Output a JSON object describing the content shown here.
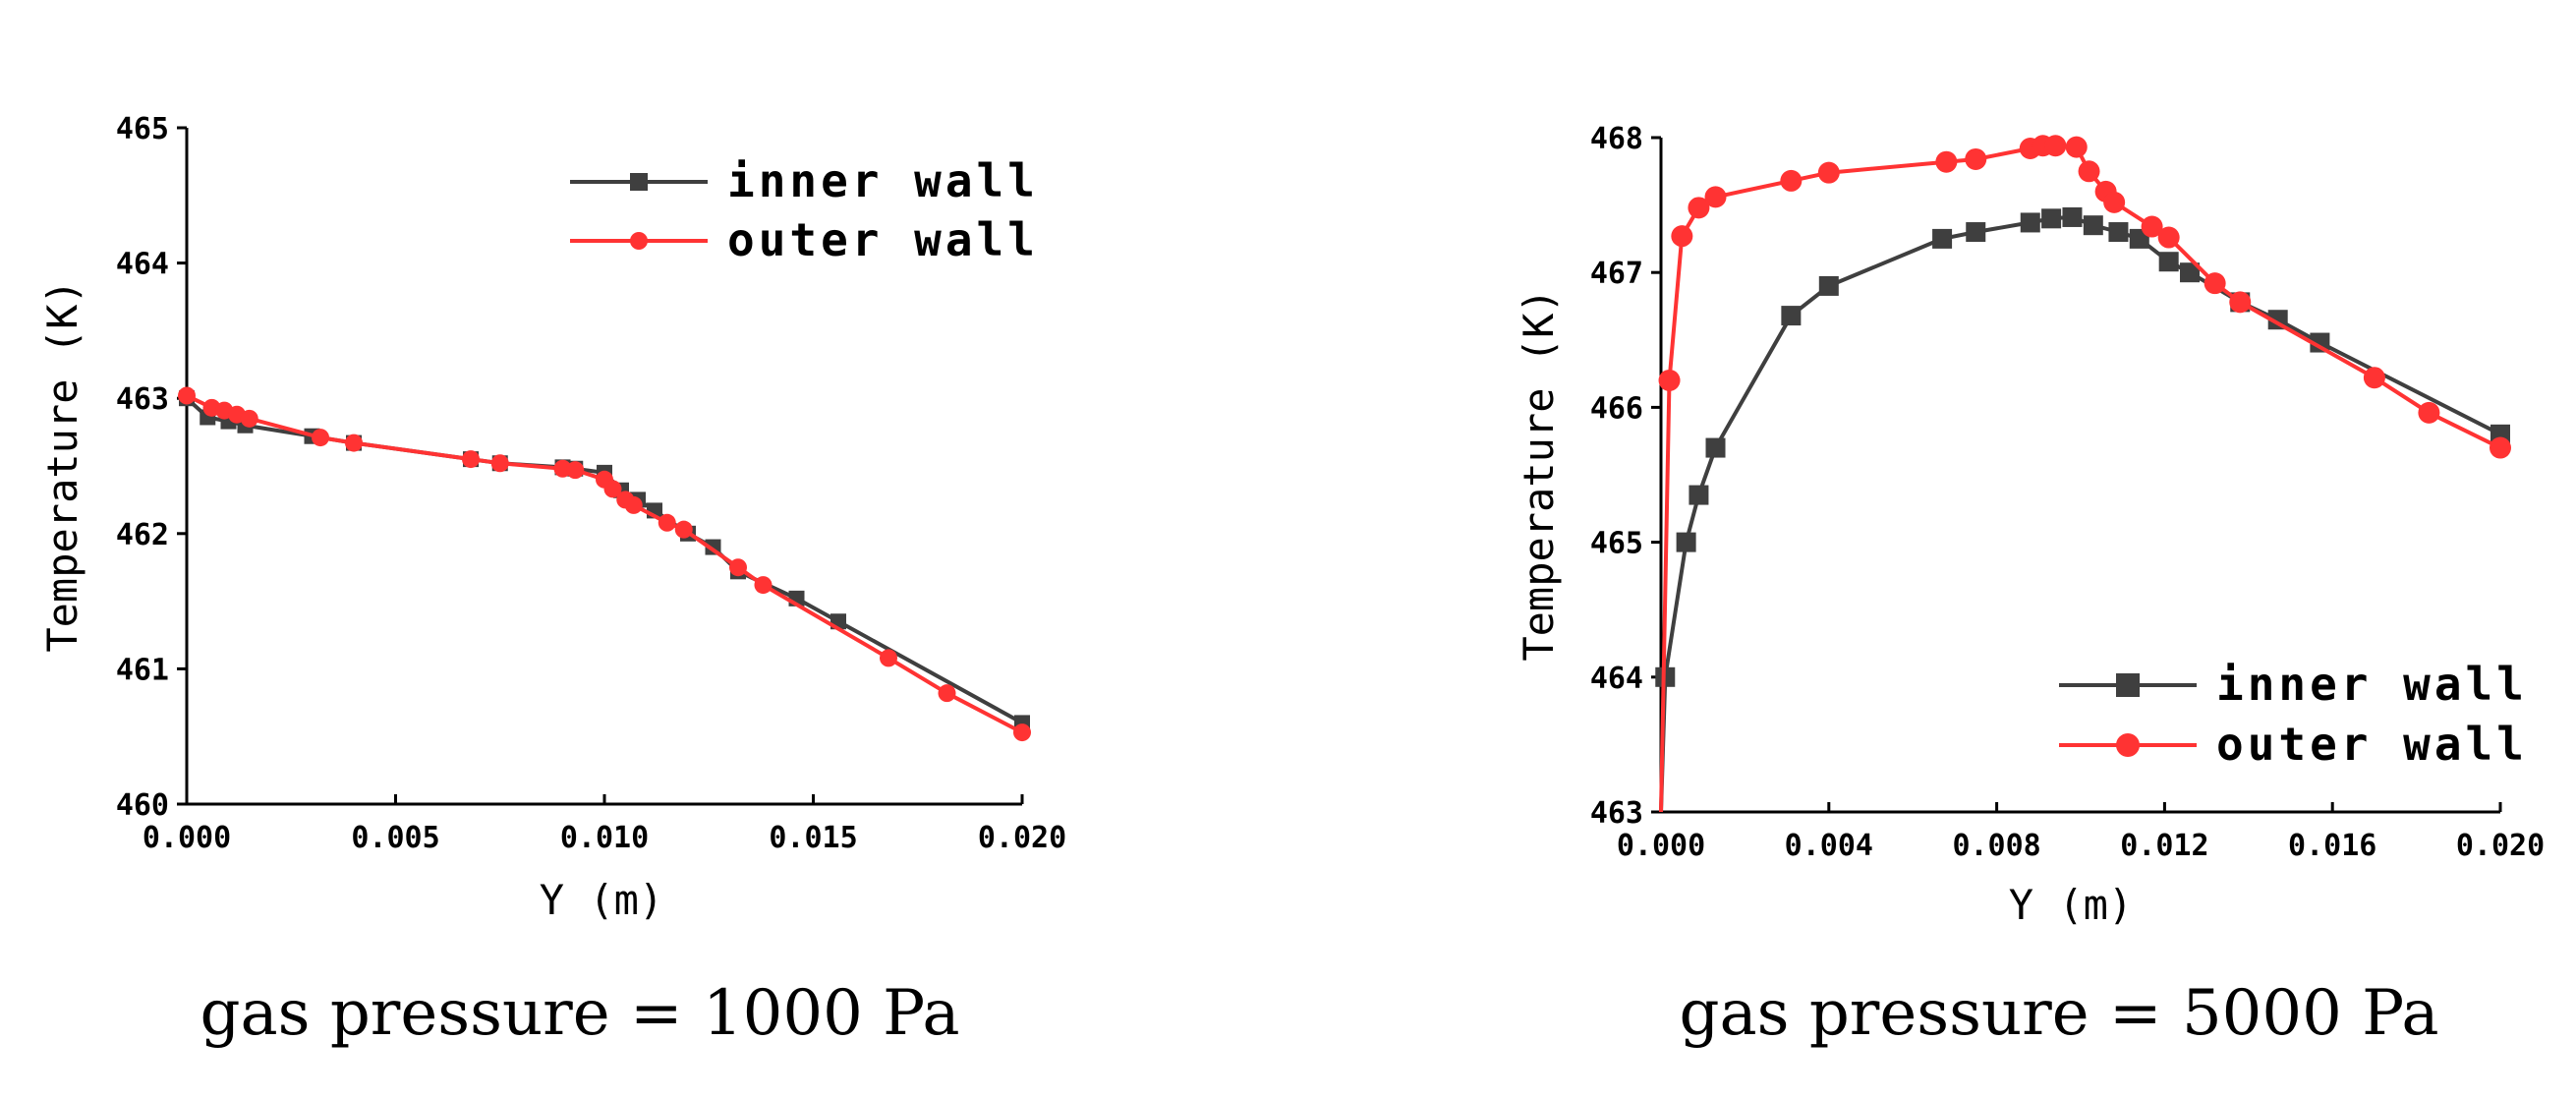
{
  "chart_data": [
    {
      "type": "line",
      "caption": "gas pressure = 1000 Pa",
      "xlabel": "Y  (m)",
      "ylabel": "Temperature  (K)",
      "xlim": [
        0,
        0.02
      ],
      "ylim": [
        460,
        465
      ],
      "xticks": [
        0,
        0.005,
        0.01,
        0.015,
        0.02
      ],
      "xtick_labels": [
        "0.000",
        "0.005",
        "0.010",
        "0.015",
        "0.020"
      ],
      "yticks": [
        460,
        461,
        462,
        463,
        464,
        465
      ],
      "ytick_labels": [
        "460",
        "461",
        "462",
        "463",
        "464",
        "465"
      ],
      "legend_position": "top-right",
      "series": [
        {
          "name": "inner wall",
          "color": "#3f3f3f",
          "marker": "square",
          "points": [
            [
              0,
              463.0
            ],
            [
              0.0005,
              462.86
            ],
            [
              0.001,
              462.83
            ],
            [
              0.0014,
              462.8
            ],
            [
              0.003,
              462.72
            ],
            [
              0.004,
              462.67
            ],
            [
              0.0068,
              462.55
            ],
            [
              0.0075,
              462.52
            ],
            [
              0.009,
              462.49
            ],
            [
              0.0093,
              462.48
            ],
            [
              0.01,
              462.45
            ],
            [
              0.0104,
              462.32
            ],
            [
              0.0108,
              462.25
            ],
            [
              0.0112,
              462.17
            ],
            [
              0.012,
              462.0
            ],
            [
              0.0126,
              461.9
            ],
            [
              0.0132,
              461.72
            ],
            [
              0.0146,
              461.52
            ],
            [
              0.0156,
              461.35
            ],
            [
              0.02,
              460.6
            ]
          ]
        },
        {
          "name": "outer wall",
          "color": "#ff3333",
          "marker": "circle",
          "points": [
            [
              0,
              463.02
            ],
            [
              0.0006,
              462.93
            ],
            [
              0.0009,
              462.91
            ],
            [
              0.0012,
              462.88
            ],
            [
              0.0015,
              462.85
            ],
            [
              0.0032,
              462.71
            ],
            [
              0.004,
              462.67
            ],
            [
              0.0068,
              462.55
            ],
            [
              0.0075,
              462.52
            ],
            [
              0.009,
              462.48
            ],
            [
              0.0093,
              462.47
            ],
            [
              0.01,
              462.4
            ],
            [
              0.0102,
              462.33
            ],
            [
              0.0105,
              462.25
            ],
            [
              0.0107,
              462.21
            ],
            [
              0.0115,
              462.08
            ],
            [
              0.0119,
              462.03
            ],
            [
              0.0132,
              461.75
            ],
            [
              0.0138,
              461.62
            ],
            [
              0.0168,
              461.08
            ],
            [
              0.0182,
              460.82
            ],
            [
              0.02,
              460.53
            ]
          ]
        }
      ]
    },
    {
      "type": "line",
      "caption": "gas pressure = 5000 Pa",
      "xlabel": "Y  (m)",
      "ylabel": "Temperature  (K)",
      "xlim": [
        0,
        0.02
      ],
      "ylim": [
        463,
        468
      ],
      "xticks": [
        0,
        0.004,
        0.008,
        0.012,
        0.016,
        0.02
      ],
      "xtick_labels": [
        "0.000",
        "0.004",
        "0.008",
        "0.012",
        "0.016",
        "0.020"
      ],
      "yticks": [
        463,
        464,
        465,
        466,
        467,
        468
      ],
      "ytick_labels": [
        "463",
        "464",
        "465",
        "466",
        "467",
        "468"
      ],
      "legend_position": "bottom-right",
      "series": [
        {
          "name": "inner wall",
          "color": "#3f3f3f",
          "marker": "square",
          "points": [
            [
              0,
              463.0
            ],
            [
              0.0001,
              464.0
            ],
            [
              0.0006,
              465.0
            ],
            [
              0.0009,
              465.35
            ],
            [
              0.0013,
              465.7
            ],
            [
              0.0031,
              466.68
            ],
            [
              0.004,
              466.9
            ],
            [
              0.0067,
              467.25
            ],
            [
              0.0075,
              467.3
            ],
            [
              0.0088,
              467.37
            ],
            [
              0.0093,
              467.4
            ],
            [
              0.0098,
              467.41
            ],
            [
              0.0103,
              467.35
            ],
            [
              0.0109,
              467.3
            ],
            [
              0.0114,
              467.25
            ],
            [
              0.0121,
              467.08
            ],
            [
              0.0126,
              467.0
            ],
            [
              0.0138,
              466.78
            ],
            [
              0.0147,
              466.65
            ],
            [
              0.0157,
              466.48
            ],
            [
              0.02,
              465.8
            ]
          ]
        },
        {
          "name": "outer wall",
          "color": "#ff3333",
          "marker": "circle",
          "points": [
            [
              0,
              463.0
            ],
            [
              0.0002,
              466.2
            ],
            [
              0.0005,
              467.27
            ],
            [
              0.0009,
              467.48
            ],
            [
              0.0013,
              467.56
            ],
            [
              0.0031,
              467.68
            ],
            [
              0.004,
              467.74
            ],
            [
              0.0068,
              467.82
            ],
            [
              0.0075,
              467.84
            ],
            [
              0.0088,
              467.92
            ],
            [
              0.0091,
              467.94
            ],
            [
              0.0094,
              467.94
            ],
            [
              0.0099,
              467.93
            ],
            [
              0.0102,
              467.75
            ],
            [
              0.0106,
              467.6
            ],
            [
              0.0108,
              467.52
            ],
            [
              0.0117,
              467.34
            ],
            [
              0.0121,
              467.26
            ],
            [
              0.0132,
              466.92
            ],
            [
              0.0138,
              466.78
            ],
            [
              0.017,
              466.22
            ],
            [
              0.0183,
              465.96
            ],
            [
              0.02,
              465.7
            ]
          ]
        }
      ]
    }
  ]
}
